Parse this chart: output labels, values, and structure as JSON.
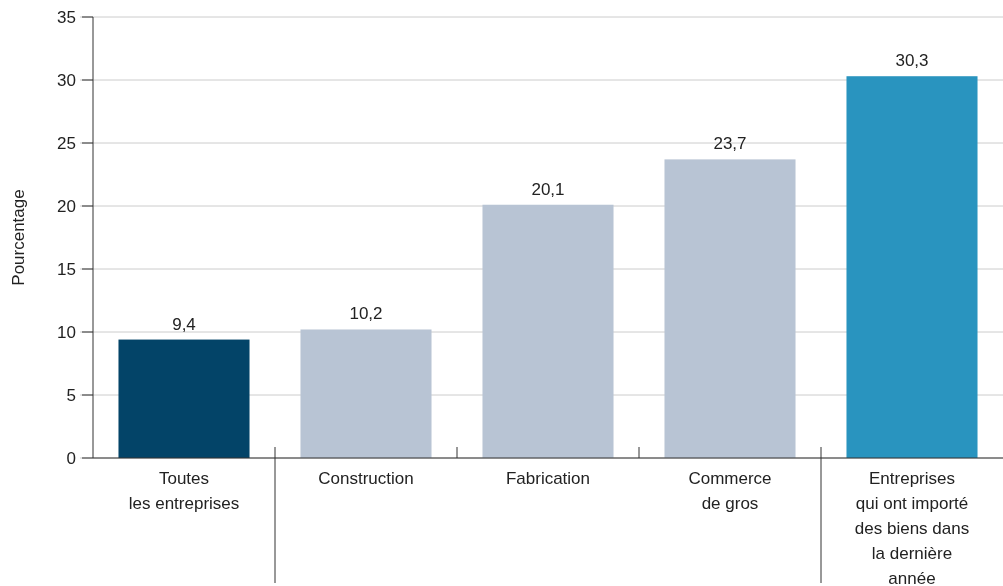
{
  "chart_data": {
    "type": "bar",
    "ylabel": "Pourcentage",
    "categories": [
      "Toutes\nles entreprises",
      "Construction",
      "Fabrication",
      "Commerce\nde gros",
      "Entreprises\nqui ont importé\ndes biens dans\nla dernière\nannée"
    ],
    "values": [
      9.4,
      10.2,
      20.1,
      23.7,
      30.3
    ],
    "colors": [
      "#034468",
      "#b8c4d4",
      "#b8c4d4",
      "#b8c4d4",
      "#2994bf"
    ],
    "value_labels": [
      "9,4",
      "10,2",
      "20,1",
      "23,7",
      "30,3"
    ],
    "ylim": [
      0,
      35
    ],
    "yticks": [
      0,
      5,
      10,
      15,
      20,
      25,
      30,
      35
    ],
    "grid": "y"
  }
}
